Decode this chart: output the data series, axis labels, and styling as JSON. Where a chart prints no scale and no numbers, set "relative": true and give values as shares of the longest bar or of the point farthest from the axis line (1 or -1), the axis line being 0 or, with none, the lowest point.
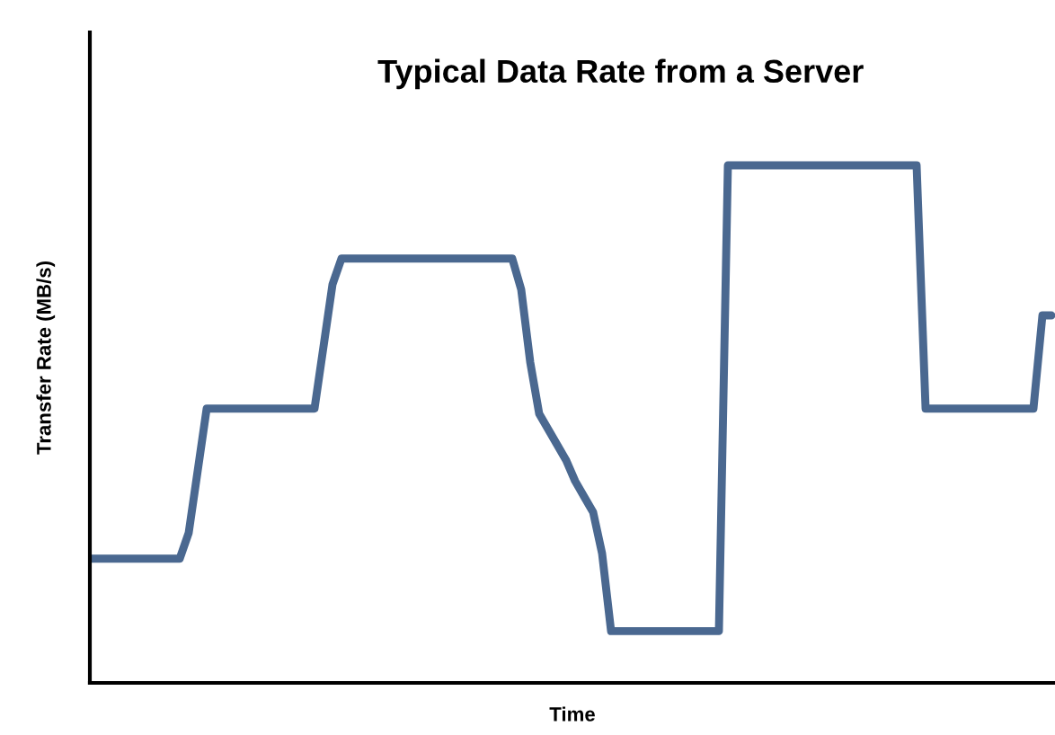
{
  "chart_data": {
    "type": "line",
    "relative": true,
    "title": "Typical Data Rate from a Server",
    "xlabel": "Time",
    "ylabel": "Transfer Rate (MB/s)",
    "color": "#4a6890",
    "grid": false,
    "legend": false,
    "marker": "none",
    "line_style": "solid",
    "categories": [
      null,
      null,
      null,
      null,
      null,
      null,
      null,
      null,
      null,
      null,
      null,
      null,
      null,
      null,
      null,
      null,
      null,
      null,
      null,
      null,
      null,
      null,
      null,
      null,
      null,
      null,
      null,
      null,
      null,
      null,
      null,
      null,
      null,
      null,
      null,
      null,
      null,
      null,
      null,
      null,
      null,
      null,
      null,
      null,
      null,
      null,
      null,
      null,
      null,
      null,
      null,
      null,
      null,
      null,
      null,
      null,
      null,
      null,
      null,
      null,
      null,
      null,
      null,
      null,
      null,
      null,
      null,
      null,
      null,
      null,
      null,
      null,
      null,
      null,
      null,
      null,
      null,
      null,
      null,
      null,
      null,
      null,
      null,
      null,
      null,
      null,
      null,
      null,
      null,
      null,
      null,
      null,
      null,
      null,
      null,
      null,
      null,
      null,
      null,
      null,
      null,
      null,
      null,
      null,
      null,
      null,
      null,
      null
    ],
    "values": [
      0.24,
      0.24,
      0.24,
      0.24,
      0.24,
      0.24,
      0.24,
      0.24,
      0.24,
      0.24,
      0.24,
      0.29,
      0.41,
      0.53,
      0.53,
      0.53,
      0.53,
      0.53,
      0.53,
      0.53,
      0.53,
      0.53,
      0.53,
      0.53,
      0.53,
      0.53,
      0.65,
      0.77,
      0.82,
      0.82,
      0.82,
      0.82,
      0.82,
      0.82,
      0.82,
      0.82,
      0.82,
      0.82,
      0.82,
      0.82,
      0.82,
      0.82,
      0.82,
      0.82,
      0.82,
      0.82,
      0.82,
      0.82,
      0.76,
      0.62,
      0.52,
      0.49,
      0.46,
      0.43,
      0.39,
      0.36,
      0.33,
      0.25,
      0.1,
      0.1,
      0.1,
      0.1,
      0.1,
      0.1,
      0.1,
      0.1,
      0.1,
      0.1,
      0.1,
      0.1,
      0.1,
      1.0,
      1.0,
      1.0,
      1.0,
      1.0,
      1.0,
      1.0,
      1.0,
      1.0,
      1.0,
      1.0,
      1.0,
      1.0,
      1.0,
      1.0,
      1.0,
      1.0,
      1.0,
      1.0,
      1.0,
      1.0,
      1.0,
      0.53,
      0.53,
      0.53,
      0.53,
      0.53,
      0.53,
      0.53,
      0.53,
      0.53,
      0.53,
      0.53,
      0.53,
      0.53,
      0.71,
      0.71
    ]
  }
}
